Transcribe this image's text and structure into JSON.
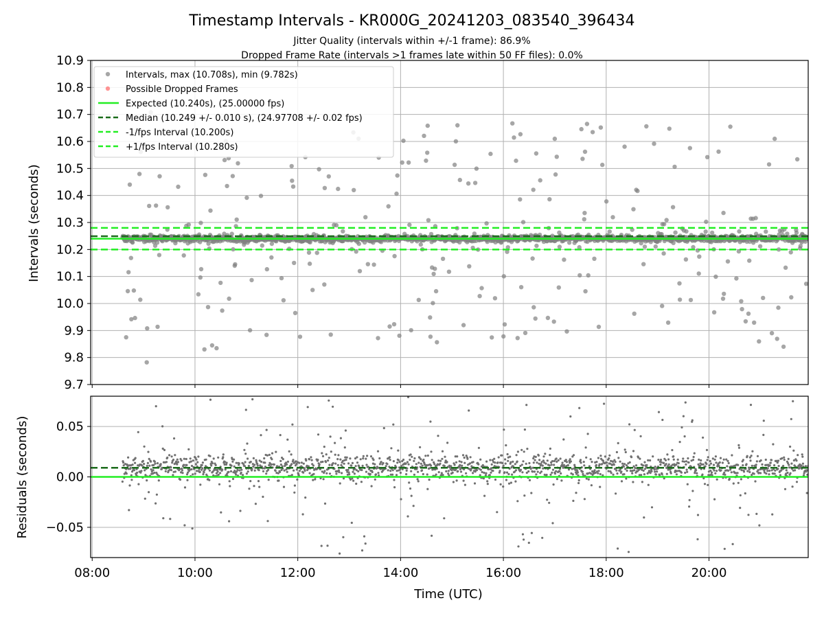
{
  "chart_data": [
    {
      "type": "scatter",
      "title": "Timestamp Intervals - KR000G_20241203_083540_396434",
      "subtitle_lines": [
        "Jitter Quality (intervals within +/-1 frame): 86.9%",
        "Dropped Frame Rate (intervals >1 frames late within 50 FF files): 0.0%"
      ],
      "ylabel": "Intervals (seconds)",
      "ylim": [
        9.7,
        10.9
      ],
      "yticks": [
        9.7,
        9.8,
        9.9,
        10.0,
        10.1,
        10.2,
        10.3,
        10.4,
        10.5,
        10.6,
        10.7,
        10.8,
        10.9
      ],
      "ytick_labels": [
        "9.7",
        "9.8",
        "9.9",
        "10.0",
        "10.1",
        "10.2",
        "10.3",
        "10.4",
        "10.5",
        "10.6",
        "10.7",
        "10.8",
        "10.9"
      ],
      "xlim_hours": [
        7.97,
        21.93
      ],
      "xticks_hours": [
        8,
        10,
        12,
        14,
        16,
        18,
        20
      ],
      "grid": true,
      "legend_position": "top-left",
      "series": [
        {
          "name": "Intervals, max (10.708s), min (9.782s)",
          "kind": "scatter",
          "color": "#808080",
          "x_start_hours": 8.59,
          "x_end_hours": 21.93,
          "count": 1700,
          "core_value": 10.24,
          "max": 10.708,
          "min": 9.782
        },
        {
          "name": "Possible Dropped Frames",
          "kind": "scatter",
          "color": "#ff6666",
          "count": 0
        },
        {
          "name": "Expected (10.240s), (25.00000 fps)",
          "kind": "hline",
          "style": "solid",
          "color": "#22ee22",
          "y": 10.24
        },
        {
          "name": "Median (10.249 +/- 0.010 s), (24.97708 +/- 0.02 fps)",
          "kind": "hline",
          "style": "dashed",
          "color": "#1a6b1a",
          "y": 10.249
        },
        {
          "name": "-1/fps Interval (10.200s)",
          "kind": "hline",
          "style": "dashed",
          "color": "#22ee22",
          "y": 10.2
        },
        {
          "name": "+1/fps Interval (10.280s)",
          "kind": "hline",
          "style": "dashed",
          "color": "#22ee22",
          "y": 10.28
        }
      ]
    },
    {
      "type": "scatter",
      "ylabel": "Residuals (seconds)",
      "xlabel": "Time (UTC)",
      "ylim": [
        -0.08,
        0.08
      ],
      "yticks": [
        -0.05,
        0.0,
        0.05
      ],
      "ytick_labels": [
        "−0.05",
        "0.00",
        "0.05"
      ],
      "xlim_hours": [
        7.97,
        21.93
      ],
      "xticks_hours": [
        8,
        10,
        12,
        14,
        16,
        18,
        20
      ],
      "xtick_labels": [
        "08:00",
        "10:00",
        "12:00",
        "14:00",
        "16:00",
        "18:00",
        "20:00"
      ],
      "grid": true,
      "series": [
        {
          "kind": "scatter",
          "color": "#707070",
          "x_start_hours": 8.59,
          "x_end_hours": 21.93,
          "count": 1700,
          "core_value": 0.0095
        },
        {
          "kind": "hline",
          "style": "solid",
          "color": "#22ee22",
          "y": 0.0
        },
        {
          "kind": "hline",
          "style": "dashed",
          "color": "#1a6b1a",
          "y": 0.009
        }
      ]
    }
  ],
  "colors": {
    "intervals": "#808080",
    "residuals": "#707070",
    "dropped": "#ff6666",
    "green": "#22ee22",
    "median": "#1a6b1a",
    "grid": "#b0b0b0"
  }
}
